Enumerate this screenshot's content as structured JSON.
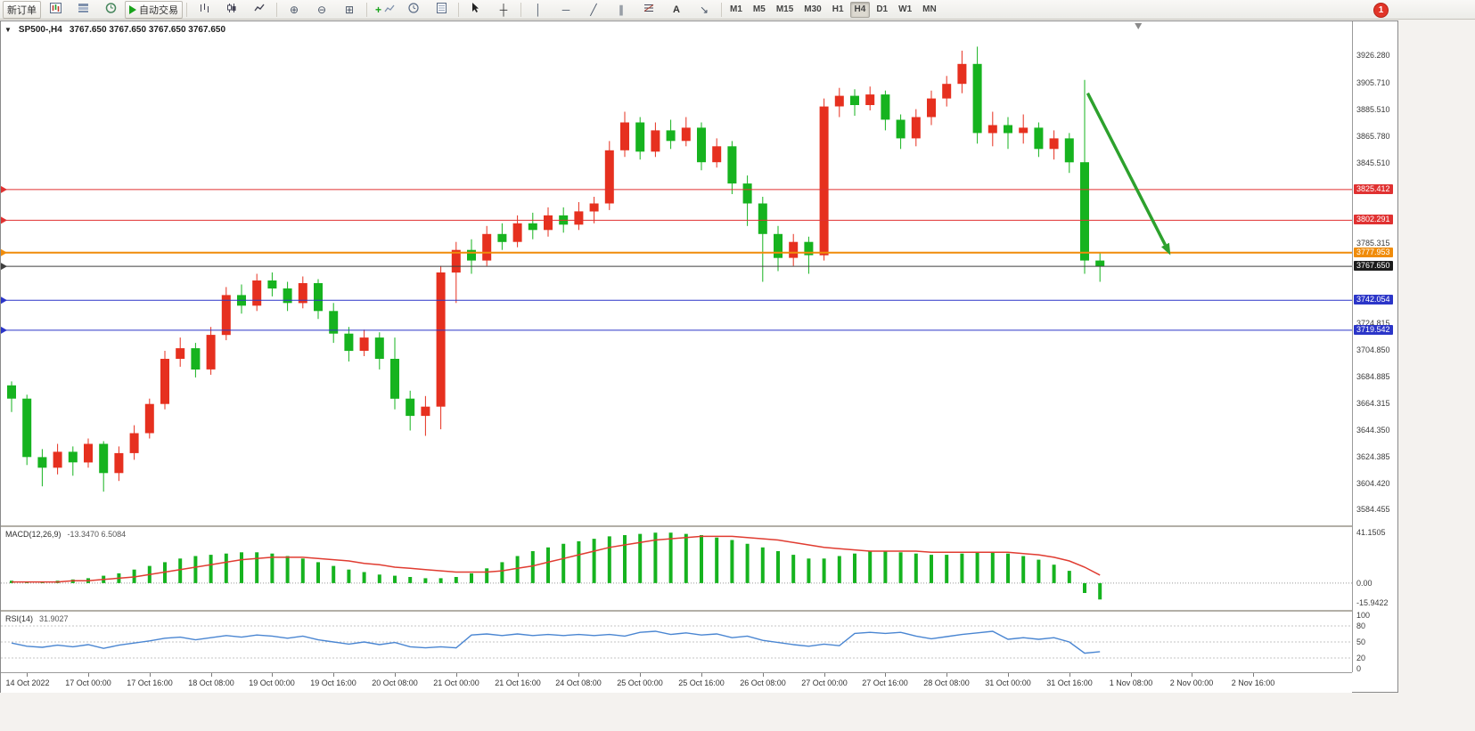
{
  "toolbar": {
    "new_order_label": "新订单",
    "auto_trading_label": "自动交易",
    "text_tool_label": "A",
    "timeframes": [
      "M1",
      "M5",
      "M15",
      "M30",
      "H1",
      "H4",
      "D1",
      "W1",
      "MN"
    ],
    "active_timeframe": "H4",
    "notification_badge": "1"
  },
  "chart_header": {
    "symbol_period": "SP500-,H4",
    "ohlc": "3767.650 3767.650 3767.650 3767.650"
  },
  "colors": {
    "bull": "#e6301f",
    "bear": "#16b31f",
    "macd_hist": "#16b31f",
    "macd_signal": "#e03c31",
    "rsi_line": "#4a86d2",
    "arrow_green": "#2da12d",
    "axis_text": "#3b3b3b"
  },
  "chart_data": {
    "type": "candlestick",
    "title": "SP500-,H4",
    "symbol": "SP500-",
    "timeframe": "H4",
    "convention": "red-bullish-green-bearish",
    "price_axis": {
      "min": 3578,
      "max": 3940,
      "labels": [
        "3926.280",
        "3905.710",
        "3885.510",
        "3865.780",
        "3845.510",
        "3785.315",
        "3724.815",
        "3704.850",
        "3684.885",
        "3664.315",
        "3644.350",
        "3624.385",
        "3604.420",
        "3584.455"
      ],
      "label_values": [
        3926.28,
        3905.71,
        3885.51,
        3865.78,
        3845.51,
        3785.315,
        3724.815,
        3704.85,
        3684.885,
        3664.315,
        3644.35,
        3624.385,
        3604.42,
        3584.455
      ]
    },
    "candles": [
      [
        3678,
        3681,
        3658,
        3668
      ],
      [
        3668,
        3671,
        3618,
        3624
      ],
      [
        3624,
        3630,
        3602,
        3616
      ],
      [
        3616,
        3634,
        3611,
        3628
      ],
      [
        3628,
        3632,
        3610,
        3620
      ],
      [
        3620,
        3638,
        3616,
        3634
      ],
      [
        3634,
        3636,
        3598,
        3612
      ],
      [
        3612,
        3632,
        3606,
        3627
      ],
      [
        3627,
        3648,
        3622,
        3642
      ],
      [
        3642,
        3668,
        3638,
        3664
      ],
      [
        3664,
        3704,
        3660,
        3698
      ],
      [
        3698,
        3714,
        3692,
        3706
      ],
      [
        3706,
        3710,
        3684,
        3690
      ],
      [
        3690,
        3722,
        3686,
        3716
      ],
      [
        3716,
        3752,
        3712,
        3746
      ],
      [
        3746,
        3754,
        3732,
        3738
      ],
      [
        3738,
        3762,
        3734,
        3757
      ],
      [
        3757,
        3763,
        3745,
        3751
      ],
      [
        3751,
        3756,
        3734,
        3740
      ],
      [
        3740,
        3760,
        3736,
        3755
      ],
      [
        3755,
        3758,
        3728,
        3734
      ],
      [
        3734,
        3740,
        3710,
        3717
      ],
      [
        3717,
        3722,
        3696,
        3704
      ],
      [
        3704,
        3720,
        3700,
        3714
      ],
      [
        3714,
        3718,
        3690,
        3698
      ],
      [
        3698,
        3714,
        3660,
        3668
      ],
      [
        3668,
        3674,
        3644,
        3655
      ],
      [
        3655,
        3670,
        3640,
        3662
      ],
      [
        3662,
        3768,
        3645,
        3763
      ],
      [
        3763,
        3786,
        3740,
        3780
      ],
      [
        3780,
        3788,
        3762,
        3772
      ],
      [
        3772,
        3798,
        3768,
        3792
      ],
      [
        3792,
        3800,
        3780,
        3786
      ],
      [
        3786,
        3806,
        3782,
        3800
      ],
      [
        3800,
        3808,
        3788,
        3795
      ],
      [
        3795,
        3812,
        3790,
        3806
      ],
      [
        3806,
        3812,
        3793,
        3799
      ],
      [
        3799,
        3816,
        3795,
        3809
      ],
      [
        3809,
        3820,
        3800,
        3815
      ],
      [
        3815,
        3862,
        3810,
        3855
      ],
      [
        3855,
        3884,
        3850,
        3876
      ],
      [
        3876,
        3880,
        3848,
        3854
      ],
      [
        3854,
        3876,
        3850,
        3870
      ],
      [
        3870,
        3878,
        3856,
        3862
      ],
      [
        3862,
        3880,
        3858,
        3872
      ],
      [
        3872,
        3876,
        3840,
        3846
      ],
      [
        3846,
        3864,
        3842,
        3858
      ],
      [
        3858,
        3862,
        3822,
        3830
      ],
      [
        3830,
        3836,
        3798,
        3815
      ],
      [
        3815,
        3820,
        3756,
        3792
      ],
      [
        3792,
        3798,
        3764,
        3774
      ],
      [
        3774,
        3792,
        3768,
        3786
      ],
      [
        3786,
        3790,
        3762,
        3776
      ],
      [
        3776,
        3894,
        3772,
        3888
      ],
      [
        3888,
        3902,
        3880,
        3896
      ],
      [
        3896,
        3901,
        3881,
        3889
      ],
      [
        3889,
        3903,
        3885,
        3897
      ],
      [
        3897,
        3900,
        3870,
        3878
      ],
      [
        3878,
        3882,
        3856,
        3864
      ],
      [
        3864,
        3886,
        3858,
        3880
      ],
      [
        3880,
        3900,
        3874,
        3894
      ],
      [
        3894,
        3911,
        3888,
        3905
      ],
      [
        3905,
        3930,
        3898,
        3920
      ],
      [
        3920,
        3933,
        3860,
        3868
      ],
      [
        3868,
        3884,
        3858,
        3874
      ],
      [
        3874,
        3880,
        3856,
        3868
      ],
      [
        3868,
        3882,
        3860,
        3872
      ],
      [
        3872,
        3876,
        3850,
        3856
      ],
      [
        3856,
        3870,
        3848,
        3864
      ],
      [
        3864,
        3868,
        3838,
        3846
      ],
      [
        3846,
        3908,
        3762,
        3772
      ],
      [
        3772,
        3778,
        3756,
        3767.65
      ]
    ],
    "time_labels": [
      "14 Oct 2022",
      "17 Oct 00:00",
      "17 Oct 16:00",
      "18 Oct 08:00",
      "19 Oct 00:00",
      "19 Oct 16:00",
      "20 Oct 08:00",
      "21 Oct 00:00",
      "21 Oct 16:00",
      "24 Oct 08:00",
      "25 Oct 00:00",
      "25 Oct 16:00",
      "26 Oct 08:00",
      "27 Oct 00:00",
      "27 Oct 16:00",
      "28 Oct 08:00",
      "31 Oct 00:00",
      "31 Oct 16:00",
      "1 Nov 08:00",
      "2 Nov 00:00",
      "2 Nov 16:00"
    ],
    "first_label_index": 1,
    "label_every": 4,
    "hlines": [
      {
        "price": 3825.412,
        "label": "3825.412",
        "color": "#e03131",
        "width": 1
      },
      {
        "price": 3802.291,
        "label": "3802.291",
        "color": "#e03131",
        "width": 1
      },
      {
        "price": 3777.953,
        "label": "3777.953",
        "color": "#f08c0a",
        "width": 2
      },
      {
        "price": 3767.65,
        "label": "3767.650",
        "color": "#3f3f3f",
        "width": 1,
        "badge_bg": "#1c1c1c",
        "current": true
      },
      {
        "price": 3742.054,
        "label": "3742.054",
        "color": "#2b35c8",
        "width": 1
      },
      {
        "price": 3719.542,
        "label": "3719.542",
        "color": "#2b35c8",
        "width": 1
      }
    ],
    "trend_arrow": {
      "from": {
        "index": 70.2,
        "price": 3898
      },
      "to": {
        "index": 75.6,
        "price": 3776
      }
    },
    "shift_marker_index": 73.5,
    "macd": {
      "title": "MACD(12,26,9)",
      "values": "-13.3470 6.5084",
      "range": [
        -15.9422,
        41.1505
      ],
      "axis_labels": [
        {
          "v": 41.1505,
          "t": "41.1505"
        },
        {
          "v": 0,
          "t": "0.00"
        },
        {
          "v": -15.9422,
          "t": "-15.9422"
        }
      ],
      "histogram": [
        2,
        1,
        1,
        2,
        3,
        4,
        6,
        8,
        11,
        14,
        17,
        20,
        22,
        23,
        24,
        25,
        25,
        24,
        22,
        20,
        17,
        14,
        11,
        9,
        7,
        6,
        5,
        4,
        4,
        5,
        8,
        12,
        17,
        22,
        26,
        29,
        32,
        34,
        36,
        38,
        39,
        40,
        41,
        41,
        40,
        39,
        37,
        35,
        32,
        29,
        26,
        23,
        20,
        20,
        22,
        24,
        26,
        26,
        25,
        24,
        23,
        23,
        24,
        25,
        25,
        24,
        22,
        19,
        15,
        10,
        -8,
        -13.3
      ],
      "signal": [
        1,
        1,
        1,
        1,
        2,
        2,
        3,
        4,
        5,
        7,
        9,
        11,
        13,
        15,
        17,
        19,
        20,
        21,
        21,
        21,
        20,
        19,
        18,
        16,
        15,
        13,
        12,
        11,
        10,
        9,
        9,
        9,
        10,
        12,
        14,
        17,
        20,
        23,
        26,
        29,
        31,
        33,
        35,
        36,
        37,
        38,
        38,
        38,
        37,
        36,
        35,
        33,
        31,
        29,
        28,
        27,
        26,
        26,
        26,
        26,
        25,
        25,
        25,
        25,
        25,
        25,
        24,
        23,
        21,
        18,
        13,
        6.5
      ]
    },
    "rsi": {
      "title": "RSI(14)",
      "value": "31.9027",
      "range": [
        0,
        100
      ],
      "levels": [
        80,
        50,
        20
      ],
      "axis_labels": [
        {
          "v": 100,
          "t": "100"
        },
        {
          "v": 80,
          "t": "80"
        },
        {
          "v": 50,
          "t": "50"
        },
        {
          "v": 20,
          "t": "20"
        },
        {
          "v": 0,
          "t": "0"
        }
      ],
      "values": [
        48,
        42,
        40,
        44,
        41,
        45,
        38,
        44,
        48,
        52,
        57,
        59,
        54,
        58,
        62,
        59,
        63,
        61,
        57,
        61,
        54,
        50,
        46,
        50,
        45,
        49,
        41,
        39,
        41,
        39,
        63,
        65,
        62,
        65,
        62,
        64,
        62,
        64,
        62,
        64,
        61,
        68,
        70,
        64,
        67,
        63,
        65,
        58,
        61,
        53,
        49,
        45,
        42,
        46,
        43,
        66,
        68,
        66,
        68,
        61,
        56,
        60,
        64,
        67,
        70,
        55,
        58,
        55,
        58,
        50,
        29,
        31.9
      ]
    }
  }
}
